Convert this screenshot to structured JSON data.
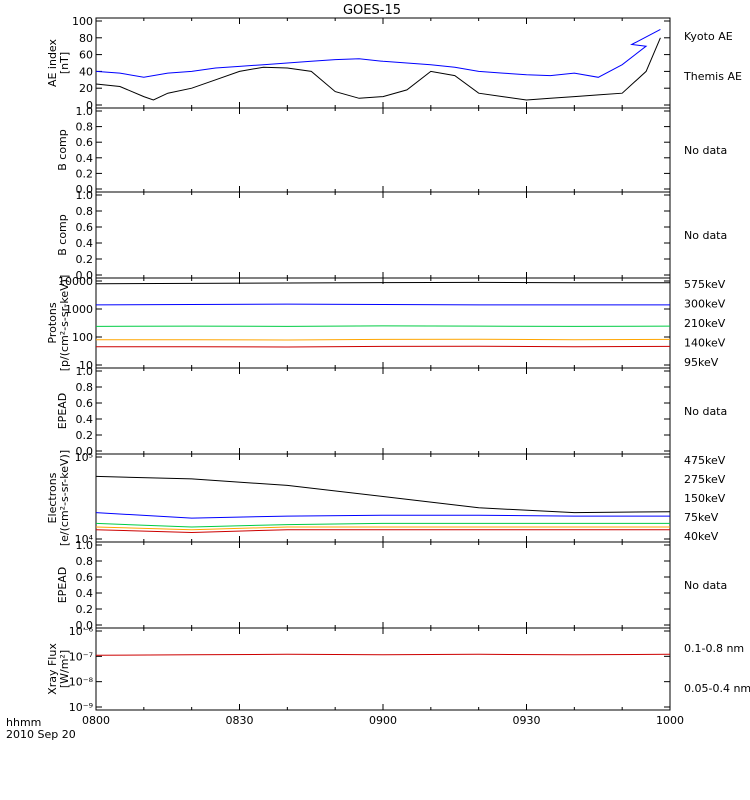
{
  "title": "GOES-15",
  "footer": {
    "unit": "hhmm",
    "date": "2010 Sep 20"
  },
  "colors": {
    "black": "#000000",
    "blue": "#0000ff",
    "red": "#cc0000",
    "orange": "#ffa500",
    "green": "#00cc44"
  },
  "chart_data": [
    {
      "type": "line",
      "ylabel": [
        "AE index",
        "[nT]"
      ],
      "ylim": [
        0,
        100
      ],
      "yticks": [
        "0",
        "20",
        "40",
        "60",
        "80",
        "100"
      ],
      "series": [
        {
          "name": "Kyoto AE",
          "color": "#0000ff",
          "x": [
            0,
            5,
            10,
            15,
            20,
            25,
            30,
            35,
            40,
            45,
            50,
            55,
            60,
            65,
            70,
            75,
            80,
            85,
            90,
            95,
            100,
            105,
            110,
            115,
            112,
            118
          ],
          "values": [
            40,
            38,
            33,
            38,
            40,
            44,
            46,
            48,
            50,
            52,
            54,
            55,
            52,
            50,
            48,
            45,
            40,
            38,
            36,
            35,
            38,
            33,
            48,
            70,
            72,
            90
          ]
        },
        {
          "name": "Themis AE",
          "color": "#000000",
          "x": [
            0,
            5,
            10,
            12,
            15,
            20,
            25,
            30,
            35,
            40,
            45,
            50,
            55,
            60,
            65,
            70,
            75,
            80,
            85,
            90,
            95,
            100,
            105,
            110,
            115,
            118
          ],
          "values": [
            25,
            22,
            10,
            6,
            14,
            20,
            30,
            40,
            45,
            44,
            40,
            16,
            8,
            10,
            18,
            40,
            35,
            14,
            10,
            6,
            8,
            10,
            12,
            14,
            40,
            80
          ]
        }
      ]
    },
    {
      "type": "line",
      "ylabel": [
        "B comp"
      ],
      "ylim": [
        0,
        1
      ],
      "yticks": [
        "0.0",
        "0.2",
        "0.4",
        "0.6",
        "0.8",
        "1.0"
      ],
      "note": "No data"
    },
    {
      "type": "line",
      "ylabel": [
        "B comp"
      ],
      "ylim": [
        0,
        1
      ],
      "yticks": [
        "0.0",
        "0.2",
        "0.4",
        "0.6",
        "0.8",
        "1.0"
      ],
      "note": "No data"
    },
    {
      "type": "line",
      "ylabel": [
        "Protons",
        "[p/(cm²-s-sr-keV)]"
      ],
      "yscale": "log",
      "ylim": [
        10,
        10000
      ],
      "yticks": [
        "10",
        "100",
        "1000",
        "10000"
      ],
      "series": [
        {
          "name": "575keV",
          "color": "#cc0000",
          "values": [
            45,
            45,
            44,
            46,
            47,
            45,
            46
          ]
        },
        {
          "name": "300keV",
          "color": "#ffa500",
          "values": [
            80,
            80,
            78,
            82,
            83,
            80,
            82
          ]
        },
        {
          "name": "210keV",
          "color": "#00cc44",
          "values": [
            240,
            245,
            240,
            250,
            245,
            240,
            245
          ]
        },
        {
          "name": "140keV",
          "color": "#0000ff",
          "values": [
            1400,
            1450,
            1500,
            1450,
            1400,
            1400,
            1400
          ]
        },
        {
          "name": "95keV",
          "color": "#000000",
          "values": [
            8000,
            8200,
            8500,
            8800,
            8900,
            8700,
            8600
          ]
        }
      ]
    },
    {
      "type": "line",
      "ylabel": [
        "EPEAD"
      ],
      "ylim": [
        0,
        1
      ],
      "yticks": [
        "0.0",
        "0.2",
        "0.4",
        "0.6",
        "0.8",
        "1.0"
      ],
      "note": "No data"
    },
    {
      "type": "line",
      "ylabel": [
        "Electrons",
        "[e/(cm²-s-sr-keV)]"
      ],
      "yscale": "log",
      "ylim": [
        10000,
        100000
      ],
      "yticks": [
        "10⁴",
        "10⁵"
      ],
      "series": [
        {
          "name": "475keV",
          "color": "#cc0000",
          "values": [
            13000,
            12000,
            13000,
            13000,
            13000,
            13000,
            13000
          ]
        },
        {
          "name": "275keV",
          "color": "#ffa500",
          "values": [
            14000,
            13000,
            14000,
            14000,
            14000,
            14000,
            14000
          ]
        },
        {
          "name": "150keV",
          "color": "#00cc44",
          "values": [
            15500,
            14000,
            15000,
            15500,
            15500,
            15500,
            15500
          ]
        },
        {
          "name": "75keV",
          "color": "#0000ff",
          "values": [
            21000,
            18000,
            19000,
            19500,
            19500,
            19000,
            19000
          ]
        },
        {
          "name": "40keV",
          "color": "#000000",
          "values": [
            58000,
            54000,
            45000,
            33000,
            24000,
            21000,
            21500
          ]
        }
      ]
    },
    {
      "type": "line",
      "ylabel": [
        "EPEAD"
      ],
      "ylim": [
        0,
        1
      ],
      "yticks": [
        "0.0",
        "0.2",
        "0.4",
        "0.6",
        "0.8",
        "1.0"
      ],
      "note": "No data"
    },
    {
      "type": "line",
      "ylabel": [
        "Xray Flux",
        "[W/m²]"
      ],
      "yscale": "log",
      "ylim": [
        1e-09,
        1e-06
      ],
      "yticks": [
        "10⁻⁹",
        "10⁻⁸",
        "10⁻⁷",
        "10⁻⁶"
      ],
      "series": [
        {
          "name": "0.1-0.8 nm",
          "color": "#cc0000",
          "values": [
            1.1e-07,
            1.15e-07,
            1.2e-07,
            1.15e-07,
            1.2e-07,
            1.15e-07,
            1.2e-07
          ]
        },
        {
          "name": "0.05-0.4 nm",
          "color": "#0000ff",
          "values": []
        }
      ]
    }
  ],
  "xaxis": {
    "ticks": [
      "0800",
      "0830",
      "0900",
      "0930",
      "1000"
    ]
  }
}
